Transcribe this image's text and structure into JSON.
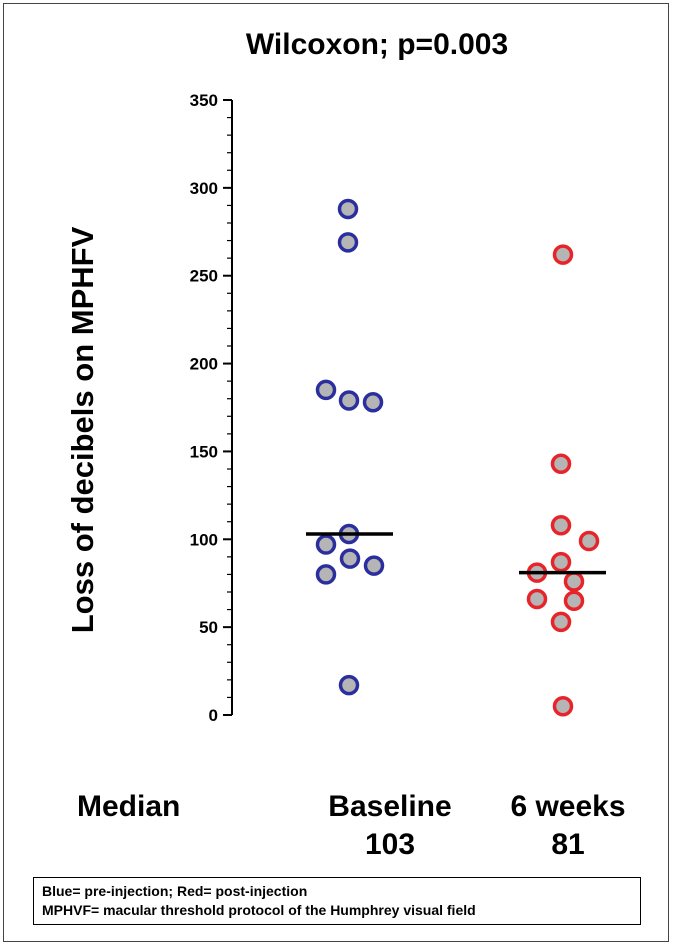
{
  "colors": {
    "baseline": "#2b2f9e",
    "six_weeks": "#e8242b",
    "marker_fill": "#b5b5b5",
    "median_line": "#000000"
  },
  "chart_data": {
    "type": "scatter",
    "title": "Wilcoxon; p=0.003",
    "ylabel": "Loss of decibels on MPHFV",
    "ylim": [
      0,
      350
    ],
    "yticks": [
      "0",
      "50",
      "100",
      "150",
      "200",
      "250",
      "300",
      "350"
    ],
    "categories": [
      "Baseline",
      "6 weeks"
    ],
    "median_label": "Median",
    "series": [
      {
        "name": "Baseline",
        "median": 103,
        "median_text": "103",
        "points": [
          {
            "x": -0.02,
            "y": 288
          },
          {
            "x": -0.02,
            "y": 269
          },
          {
            "x": -0.24,
            "y": 185
          },
          {
            "x": -0.01,
            "y": 179
          },
          {
            "x": 0.23,
            "y": 178
          },
          {
            "x": -0.01,
            "y": 103
          },
          {
            "x": -0.24,
            "y": 97
          },
          {
            "x": 0.0,
            "y": 89
          },
          {
            "x": 0.24,
            "y": 85
          },
          {
            "x": -0.24,
            "y": 80
          },
          {
            "x": -0.01,
            "y": 17
          }
        ]
      },
      {
        "name": "6 weeks",
        "median": 81,
        "median_text": "81",
        "points": [
          {
            "x": 0.0,
            "y": 262
          },
          {
            "x": -0.02,
            "y": 143
          },
          {
            "x": -0.02,
            "y": 108
          },
          {
            "x": 0.26,
            "y": 99
          },
          {
            "x": -0.02,
            "y": 87
          },
          {
            "x": -0.26,
            "y": 81
          },
          {
            "x": 0.11,
            "y": 76
          },
          {
            "x": -0.26,
            "y": 66
          },
          {
            "x": 0.11,
            "y": 65
          },
          {
            "x": -0.02,
            "y": 53
          },
          {
            "x": 0.0,
            "y": 5
          }
        ]
      }
    ]
  },
  "note": {
    "line1": "Blue= pre-injection; Red= post-injection",
    "line2": "MPHVF= macular threshold protocol of the Humphrey visual field"
  }
}
